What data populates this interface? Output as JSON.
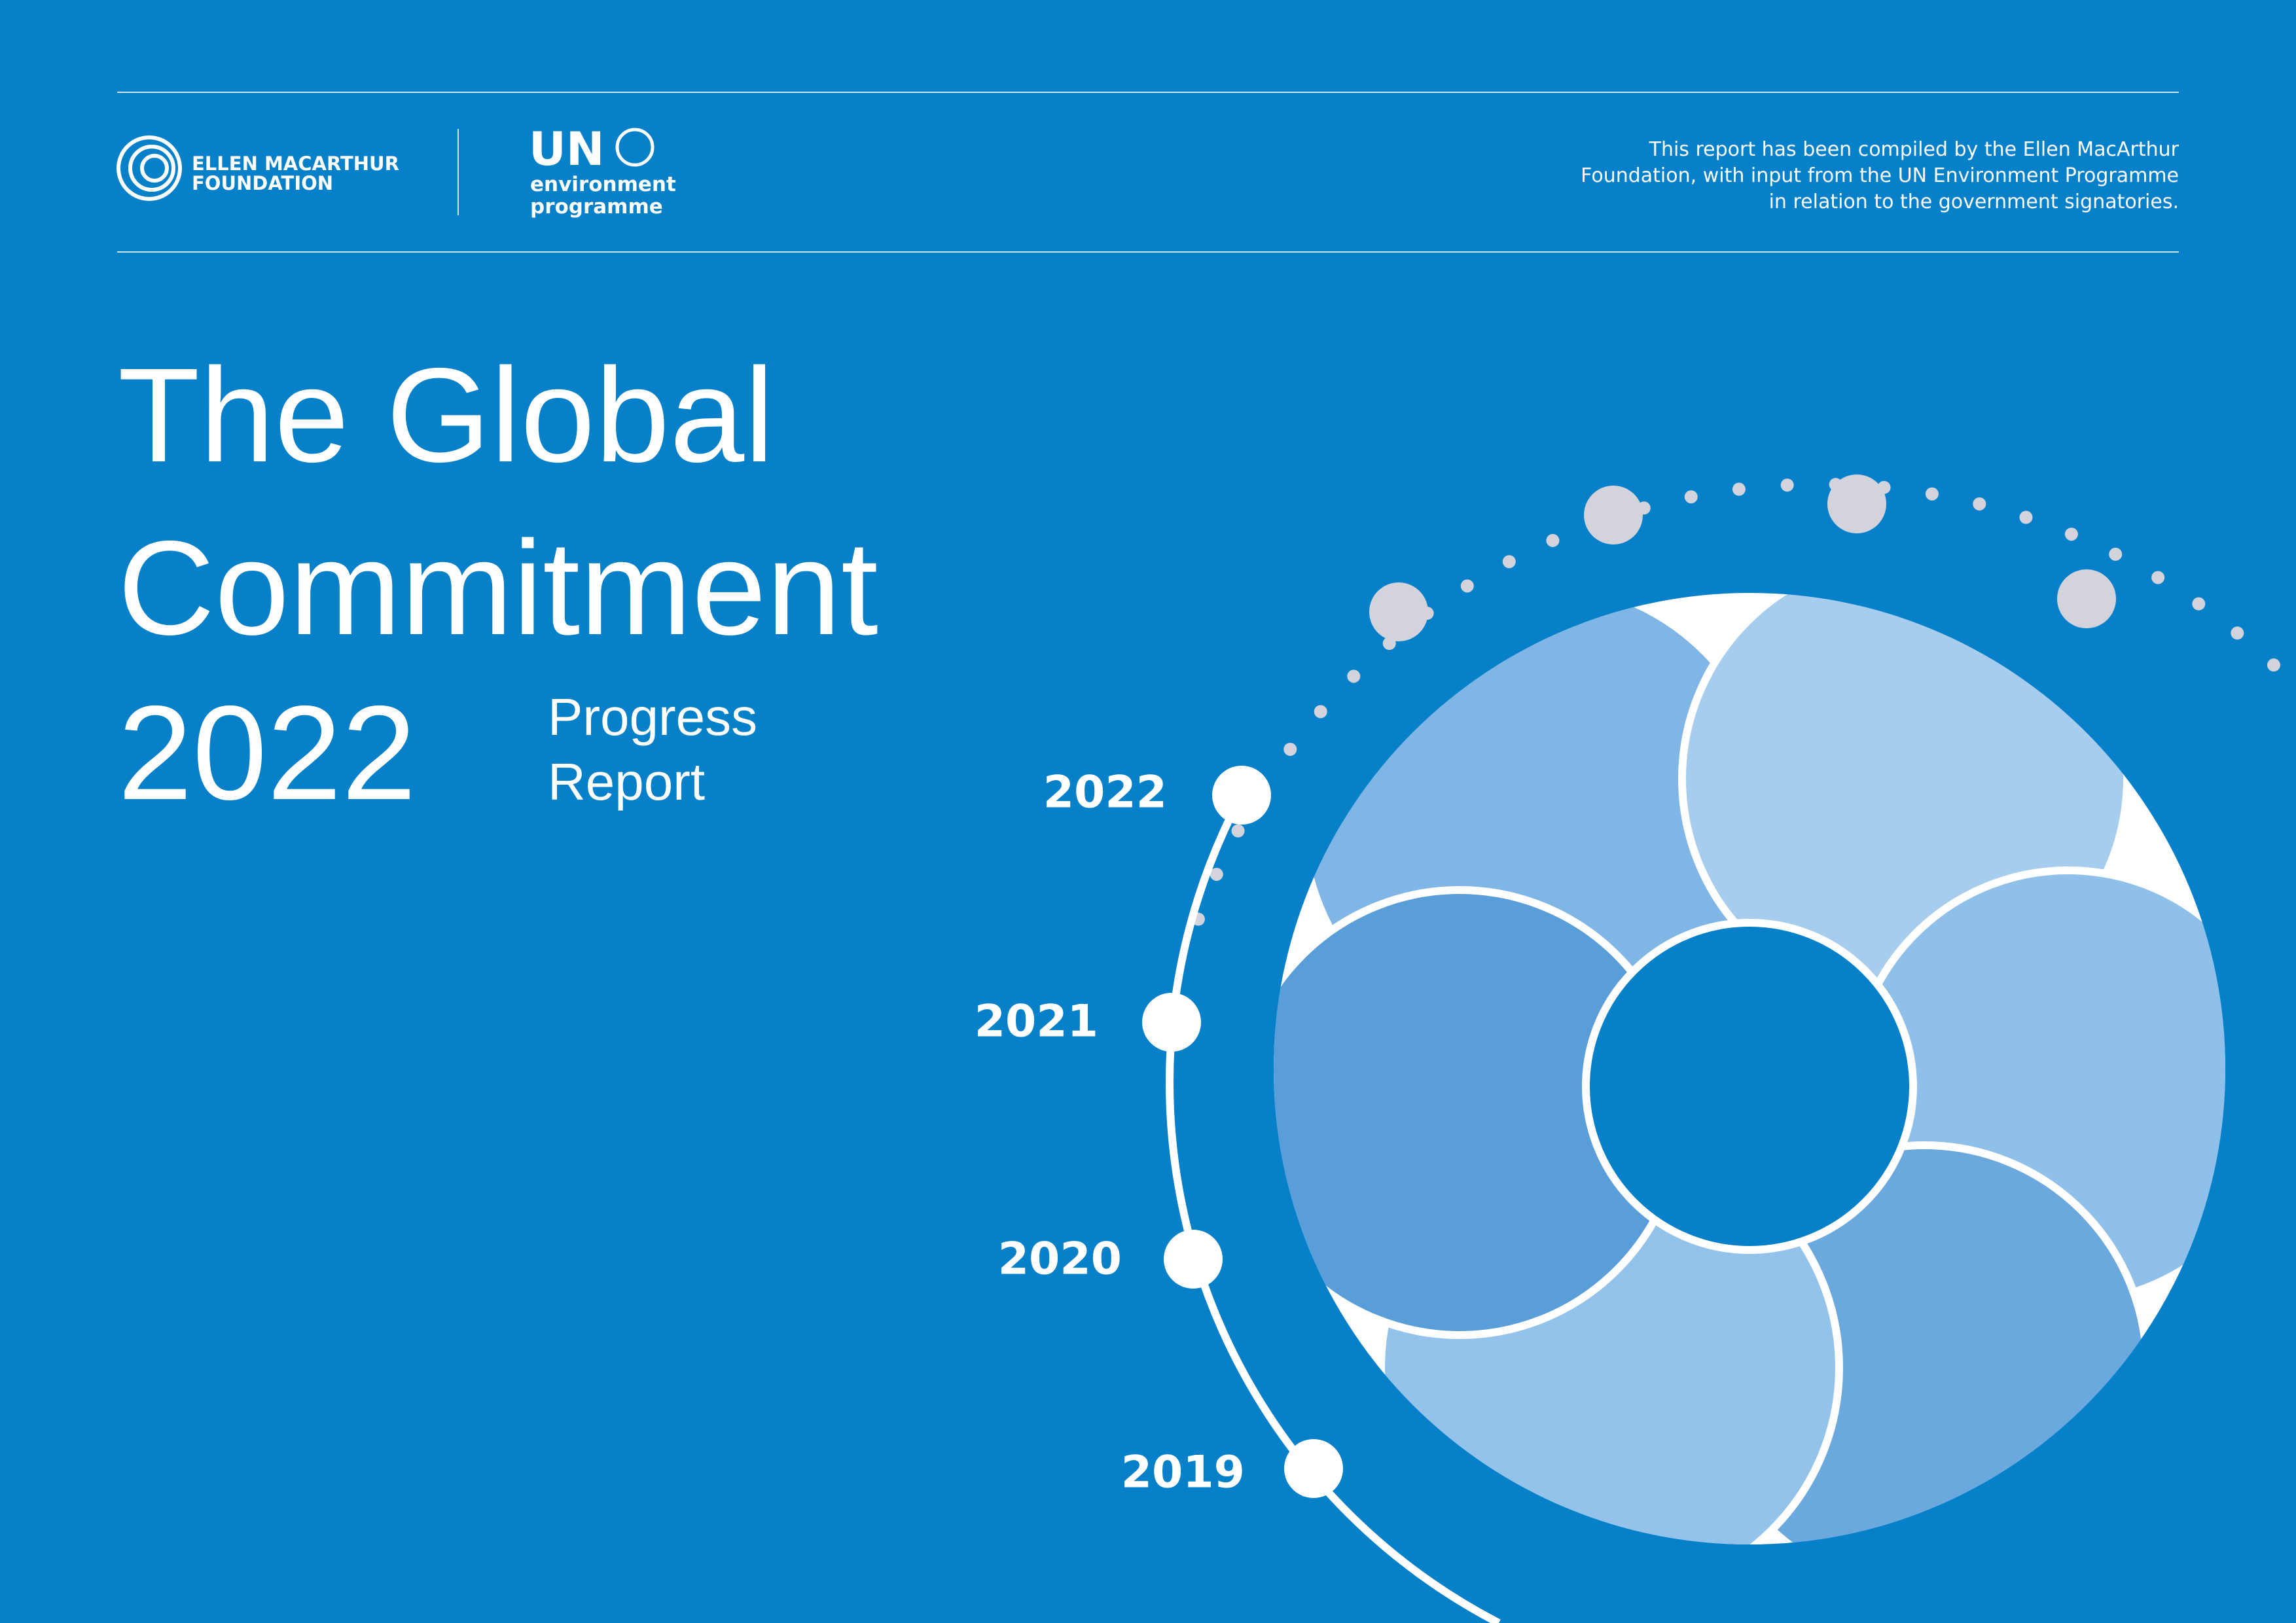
{
  "header": {
    "logo_left": [
      "ELLEN MACARTHUR",
      "FOUNDATION"
    ],
    "logo_right": {
      "mark": "UN",
      "lines": [
        "environment",
        "programme"
      ]
    },
    "note": [
      "This report has been compiled by the Ellen MacArthur",
      "Foundation, with input from the UN Environment Programme",
      "in relation to the government signatories."
    ]
  },
  "title": {
    "lines": [
      "The Global",
      "Commitment",
      "2022"
    ],
    "subtitle": [
      "Progress",
      "Report"
    ]
  },
  "timeline": [
    "2022",
    "2021",
    "2020",
    "2019"
  ]
}
